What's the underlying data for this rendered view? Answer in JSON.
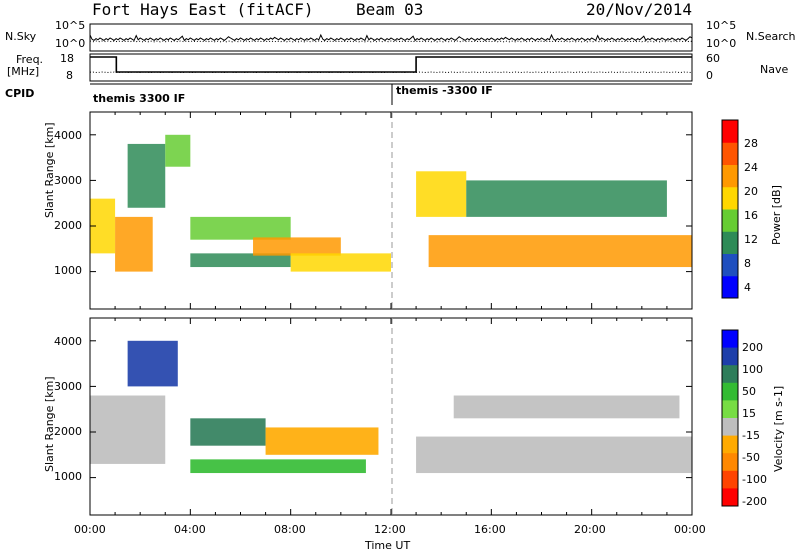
{
  "header": {
    "station": "Fort Hays East (fitACF)",
    "beam": "Beam 03",
    "date": "20/Nov/2014"
  },
  "top_panels": {
    "nsky_label": "N.Sky",
    "nsky_ticks": [
      "10^5",
      "10^0"
    ],
    "nsearch_label": "N.Search",
    "nsearch_ticks": [
      "10^5",
      "10^0"
    ],
    "freq_label": "Freq.",
    "freq_unit": "[MHz]",
    "freq_ticks": [
      "18",
      "8"
    ],
    "nave_label": "Nave",
    "nave_ticks": [
      "60",
      "0"
    ],
    "cpid_label": "CPID",
    "modes": [
      {
        "label": "themis 3300 IF",
        "start_hour": 0
      },
      {
        "label": "themis -3300 IF",
        "start_hour": 12
      }
    ]
  },
  "power_panel": {
    "ylabel": "Slant Range [km]",
    "yticks": [
      "1000",
      "2000",
      "3000",
      "4000"
    ],
    "colorbar_label": "Power [dB]",
    "colorbar_ticks": [
      "4",
      "8",
      "12",
      "16",
      "20",
      "24",
      "28"
    ],
    "colors": [
      "#0000ff",
      "#1f4fbf",
      "#2e8b57",
      "#66cc33",
      "#ffd700",
      "#ff9900",
      "#ff5500",
      "#ff0000"
    ]
  },
  "velocity_panel": {
    "ylabel": "Slant Range [km]",
    "yticks": [
      "1000",
      "2000",
      "3000",
      "4000"
    ],
    "colorbar_label": "Velocity [m s-1]",
    "colorbar_ticks": [
      "200",
      "100",
      "50",
      "15",
      "-15",
      "-50",
      "-100",
      "-200"
    ],
    "colors": [
      "#0000ff",
      "#1e3faa",
      "#2e7d5a",
      "#33bb33",
      "#77dd44",
      "#bebebe",
      "#ffaa00",
      "#ff8800",
      "#ff4400",
      "#ff0000"
    ]
  },
  "xaxis": {
    "ticks": [
      "00:00",
      "04:00",
      "08:00",
      "12:00",
      "16:00",
      "20:00",
      "00:00"
    ],
    "label": "Time UT"
  },
  "chart_data": [
    {
      "type": "heatmap",
      "title": "Power",
      "xlabel": "Time UT",
      "ylabel": "Slant Range [km]",
      "xlim": [
        0,
        24
      ],
      "ylim": [
        180,
        4500
      ],
      "zlim": [
        0,
        30
      ],
      "cells": [
        {
          "t0": 0.0,
          "t1": 1.0,
          "r0": 1400,
          "r1": 2600,
          "p": 16
        },
        {
          "t0": 1.0,
          "t1": 2.5,
          "r0": 1000,
          "r1": 2200,
          "p": 22
        },
        {
          "t0": 1.5,
          "t1": 3.0,
          "r0": 2400,
          "r1": 3800,
          "p": 10
        },
        {
          "t0": 3.0,
          "t1": 4.0,
          "r0": 3300,
          "r1": 4000,
          "p": 12
        },
        {
          "t0": 4.0,
          "t1": 8.0,
          "r0": 1700,
          "r1": 2200,
          "p": 12
        },
        {
          "t0": 4.0,
          "t1": 8.0,
          "r0": 1100,
          "r1": 1400,
          "p": 10
        },
        {
          "t0": 6.5,
          "t1": 10.0,
          "r0": 1350,
          "r1": 1750,
          "p": 20
        },
        {
          "t0": 8.0,
          "t1": 12.0,
          "r0": 1000,
          "r1": 1400,
          "p": 18
        },
        {
          "t0": 13.0,
          "t1": 15.0,
          "r0": 2200,
          "r1": 3200,
          "p": 16
        },
        {
          "t0": 13.5,
          "t1": 24.0,
          "r0": 1100,
          "r1": 1800,
          "p": 22
        },
        {
          "t0": 15.0,
          "t1": 23.0,
          "r0": 2200,
          "r1": 3000,
          "p": 8
        }
      ]
    },
    {
      "type": "heatmap",
      "title": "Velocity",
      "xlabel": "Time UT",
      "ylabel": "Slant Range [km]",
      "xlim": [
        0,
        24
      ],
      "ylim": [
        180,
        4500
      ],
      "zlim": [
        -200,
        200
      ],
      "cells": [
        {
          "t0": 0.0,
          "t1": 3.0,
          "r0": 1300,
          "r1": 2800,
          "v": 0
        },
        {
          "t0": 1.5,
          "t1": 3.5,
          "r0": 3000,
          "r1": 4000,
          "v": 150
        },
        {
          "t0": 4.0,
          "t1": 7.0,
          "r0": 1700,
          "r1": 2300,
          "v": 90
        },
        {
          "t0": 7.0,
          "t1": 11.5,
          "r0": 1500,
          "r1": 2100,
          "v": -40
        },
        {
          "t0": 4.0,
          "t1": 11.0,
          "r0": 1100,
          "r1": 1400,
          "v": 40
        },
        {
          "t0": 13.0,
          "t1": 24.0,
          "r0": 1100,
          "r1": 1900,
          "v": 0
        },
        {
          "t0": 14.5,
          "t1": 23.5,
          "r0": 2300,
          "r1": 2800,
          "v": 0
        }
      ]
    }
  ]
}
